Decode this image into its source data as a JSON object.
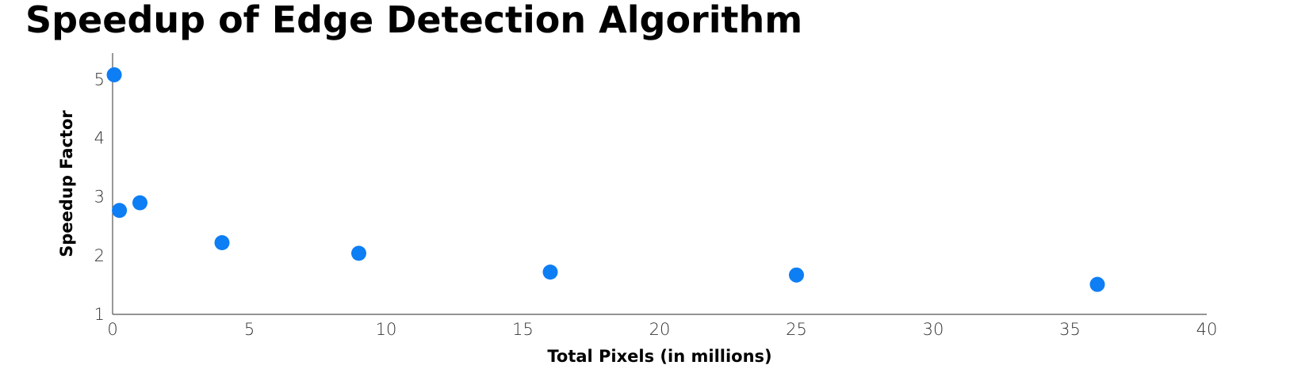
{
  "title": "Speedup of Edge Detection Algorithm",
  "colors": {
    "point": "#0d7ef4",
    "axis": "#555555"
  },
  "chart_data": {
    "type": "scatter",
    "title": "Speedup of Edge Detection Algorithm",
    "xlabel": "Total Pixels (in millions)",
    "ylabel": "Speedup Factor",
    "xlim": [
      0,
      40
    ],
    "ylim": [
      1,
      5.45
    ],
    "xticks": [
      0,
      5,
      10,
      15,
      20,
      25,
      30,
      35,
      40
    ],
    "yticks": [
      1,
      2,
      3,
      4,
      5
    ],
    "grid": false,
    "legend": "none",
    "x": [
      0.06,
      0.25,
      1.0,
      4.0,
      9.0,
      16.0,
      25.0,
      36.0
    ],
    "y": [
      5.08,
      2.77,
      2.9,
      2.22,
      2.04,
      1.72,
      1.67,
      1.51
    ]
  }
}
